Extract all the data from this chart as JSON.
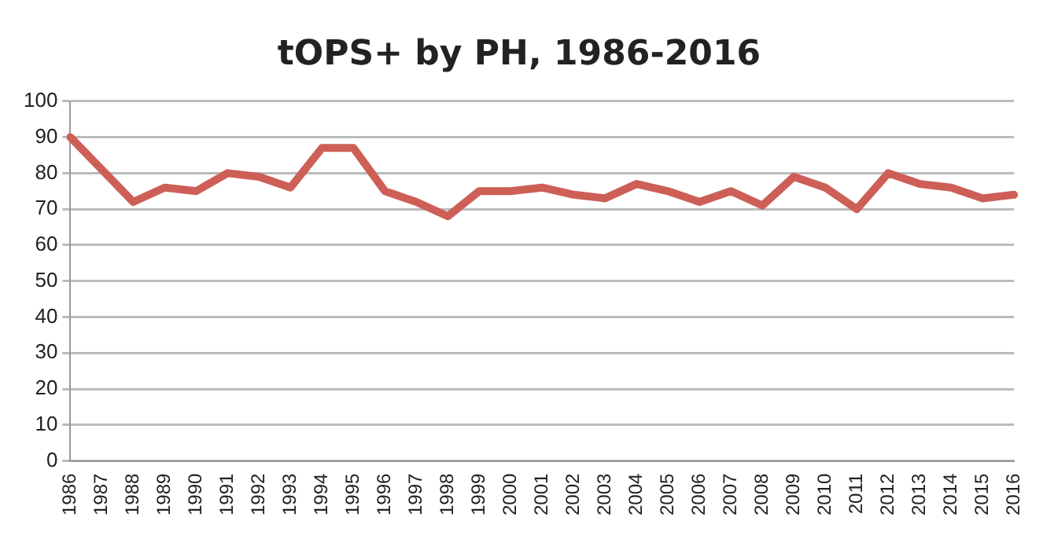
{
  "chart_data": {
    "type": "line",
    "title": "tOPS+ by PH, 1986-2016",
    "categories": [
      "1986",
      "1987",
      "1988",
      "1989",
      "1990",
      "1991",
      "1992",
      "1993",
      "1994",
      "1995",
      "1996",
      "1997",
      "1998",
      "1999",
      "2000",
      "2001",
      "2002",
      "2003",
      "2004",
      "2005",
      "2006",
      "2007",
      "2008",
      "2009",
      "2010",
      "2011",
      "2012",
      "2013",
      "2014",
      "2015",
      "2016"
    ],
    "series": [
      {
        "color": "#cd5f57",
        "values": [
          90,
          81,
          72,
          76,
          75,
          80,
          79,
          76,
          87,
          87,
          75,
          72,
          68,
          75,
          75,
          76,
          74,
          73,
          77,
          75,
          72,
          75,
          71,
          79,
          76,
          70,
          80,
          77,
          76,
          73,
          74
        ]
      }
    ],
    "ylim": [
      0,
      100
    ],
    "yticks": [
      0,
      10,
      20,
      30,
      40,
      50,
      60,
      70,
      80,
      90,
      100
    ],
    "grid": "y",
    "legend": false,
    "marker": "none",
    "line_style": "solid"
  }
}
